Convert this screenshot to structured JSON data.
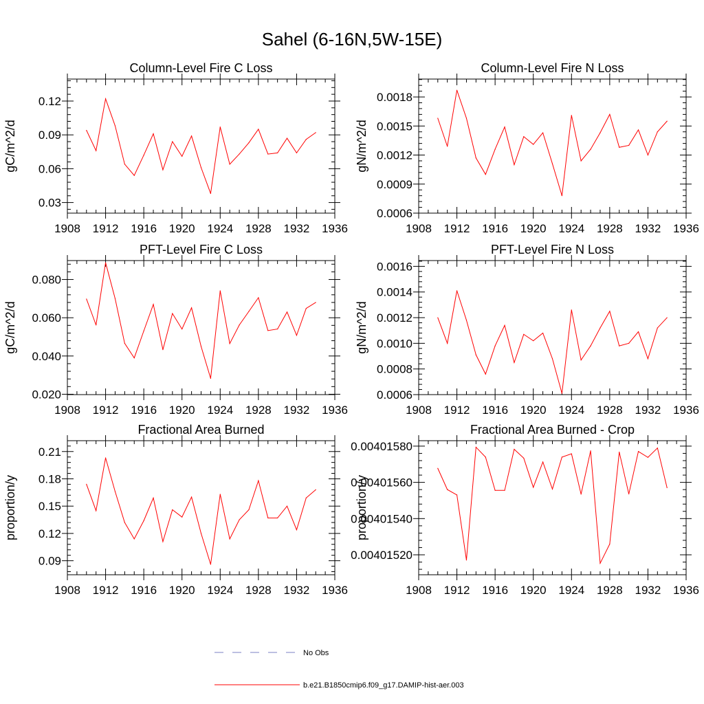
{
  "figure": {
    "title": "Sahel (6-16N,5W-15E)",
    "legend": [
      {
        "label": "No Obs",
        "color": "#7b7fc4",
        "dash": true
      },
      {
        "label": "b.e21.B1850cmip6.f09_g17.DAMIP-hist-aer.003",
        "color": "#ff0000",
        "dash": false
      }
    ]
  },
  "chart_data": [
    {
      "type": "line",
      "title": "Column-Level Fire C Loss",
      "ylabel": "gC/m^2/d",
      "xlim": [
        1908,
        1936
      ],
      "xticks": [
        1908,
        1912,
        1916,
        1920,
        1924,
        1928,
        1932,
        1936
      ],
      "ylim": [
        0.0206,
        0.1395
      ],
      "yticks": [
        0.03,
        0.06,
        0.09,
        0.12
      ],
      "ytick_labels": [
        "0.03",
        "0.06",
        "0.09",
        "0.12"
      ],
      "series": [
        {
          "color": "#ff0000",
          "x": [
            1910,
            1911,
            1912,
            1913,
            1914,
            1915,
            1916,
            1917,
            1918,
            1919,
            1920,
            1921,
            1922,
            1923,
            1924,
            1925,
            1926,
            1927,
            1928,
            1929,
            1930,
            1931,
            1932,
            1933,
            1934
          ],
          "y": [
            0.094,
            0.076,
            0.122,
            0.098,
            0.064,
            0.054,
            0.072,
            0.091,
            0.059,
            0.084,
            0.071,
            0.089,
            0.061,
            0.038,
            0.097,
            0.064,
            0.073,
            0.083,
            0.095,
            0.073,
            0.074,
            0.087,
            0.074,
            0.086,
            0.092
          ]
        }
      ]
    },
    {
      "type": "line",
      "title": "Column-Level Fire N Loss",
      "ylabel": "gN/m^2/d",
      "xlim": [
        1908,
        1936
      ],
      "xticks": [
        1908,
        1912,
        1916,
        1920,
        1924,
        1928,
        1932,
        1936
      ],
      "ylim": [
        0.0006,
        0.001985
      ],
      "yticks": [
        0.0006,
        0.0009,
        0.0012,
        0.0015,
        0.0018
      ],
      "ytick_labels": [
        "0.0006",
        "0.0009",
        "0.0012",
        "0.0015",
        "0.0018"
      ],
      "series": [
        {
          "color": "#ff0000",
          "x": [
            1910,
            1911,
            1912,
            1913,
            1914,
            1915,
            1916,
            1917,
            1918,
            1919,
            1920,
            1921,
            1922,
            1923,
            1924,
            1925,
            1926,
            1927,
            1928,
            1929,
            1930,
            1931,
            1932,
            1933,
            1934
          ],
          "y": [
            0.00158,
            0.00129,
            0.00187,
            0.00158,
            0.00117,
            0.001,
            0.00126,
            0.00149,
            0.0011,
            0.00139,
            0.00131,
            0.00143,
            0.00111,
            0.00078,
            0.00161,
            0.00114,
            0.00126,
            0.00143,
            0.00162,
            0.00128,
            0.0013,
            0.00146,
            0.0012,
            0.00144,
            0.00155
          ]
        }
      ]
    },
    {
      "type": "line",
      "title": "PFT-Level Fire C Loss",
      "ylabel": "gC/m^2/d",
      "xlim": [
        1908,
        1936
      ],
      "xticks": [
        1908,
        1912,
        1916,
        1920,
        1924,
        1928,
        1932,
        1936
      ],
      "ylim": [
        0.0198,
        0.0899
      ],
      "yticks": [
        0.02,
        0.04,
        0.06,
        0.08
      ],
      "ytick_labels": [
        "0.020",
        "0.040",
        "0.060",
        "0.080"
      ],
      "series": [
        {
          "color": "#ff0000",
          "x": [
            1910,
            1911,
            1912,
            1913,
            1914,
            1915,
            1916,
            1917,
            1918,
            1919,
            1920,
            1921,
            1922,
            1923,
            1924,
            1925,
            1926,
            1927,
            1928,
            1929,
            1930,
            1931,
            1932,
            1933,
            1934
          ],
          "y": [
            0.0698,
            0.0562,
            0.0888,
            0.07,
            0.0466,
            0.039,
            0.0531,
            0.067,
            0.0433,
            0.0622,
            0.0541,
            0.0652,
            0.045,
            0.0283,
            0.0741,
            0.0465,
            0.0562,
            0.0633,
            0.0705,
            0.0533,
            0.0541,
            0.063,
            0.0508,
            0.0649,
            0.068
          ]
        }
      ]
    },
    {
      "type": "line",
      "title": "PFT-Level Fire N Loss",
      "ylabel": "gN/m^2/d",
      "xlim": [
        1908,
        1936
      ],
      "xticks": [
        1908,
        1912,
        1916,
        1920,
        1924,
        1928,
        1932,
        1936
      ],
      "ylim": [
        0.0006,
        0.001645
      ],
      "yticks": [
        0.0006,
        0.0008,
        0.001,
        0.0012,
        0.0014,
        0.0016
      ],
      "ytick_labels": [
        "0.0006",
        "0.0008",
        "0.0010",
        "0.0012",
        "0.0014",
        "0.0016"
      ],
      "series": [
        {
          "color": "#ff0000",
          "x": [
            1910,
            1911,
            1912,
            1913,
            1914,
            1915,
            1916,
            1917,
            1918,
            1919,
            1920,
            1921,
            1922,
            1923,
            1924,
            1925,
            1926,
            1927,
            1928,
            1929,
            1930,
            1931,
            1932,
            1933,
            1934
          ],
          "y": [
            0.0012,
            0.001,
            0.00141,
            0.00118,
            0.00091,
            0.00076,
            0.00098,
            0.00114,
            0.00085,
            0.00107,
            0.00102,
            0.00108,
            0.00088,
            0.00061,
            0.00126,
            0.00087,
            0.00098,
            0.00112,
            0.00125,
            0.00098,
            0.001,
            0.00109,
            0.00088,
            0.00112,
            0.0012
          ]
        }
      ]
    },
    {
      "type": "line",
      "title": "Fractional Area Burned",
      "ylabel": "proportion/y",
      "xlim": [
        1908,
        1936
      ],
      "xticks": [
        1908,
        1912,
        1916,
        1920,
        1924,
        1928,
        1932,
        1936
      ],
      "ylim": [
        0.0746,
        0.2219
      ],
      "yticks": [
        0.09,
        0.12,
        0.15,
        0.18,
        0.21
      ],
      "ytick_labels": [
        "0.09",
        "0.12",
        "0.15",
        "0.18",
        "0.21"
      ],
      "series": [
        {
          "color": "#ff0000",
          "x": [
            1910,
            1911,
            1912,
            1913,
            1914,
            1915,
            1916,
            1917,
            1918,
            1919,
            1920,
            1921,
            1922,
            1923,
            1924,
            1925,
            1926,
            1927,
            1928,
            1929,
            1930,
            1931,
            1932,
            1933,
            1934
          ],
          "y": [
            0.174,
            0.145,
            0.203,
            0.166,
            0.132,
            0.114,
            0.134,
            0.159,
            0.111,
            0.146,
            0.138,
            0.16,
            0.12,
            0.086,
            0.163,
            0.114,
            0.135,
            0.146,
            0.178,
            0.137,
            0.137,
            0.15,
            0.124,
            0.159,
            0.168
          ]
        }
      ]
    },
    {
      "type": "line",
      "title": "Fractional Area Burned - Crop",
      "ylabel": "proportion/y",
      "xlim": [
        1908,
        1936
      ],
      "xticks": [
        1908,
        1912,
        1916,
        1920,
        1924,
        1928,
        1932,
        1936
      ],
      "ylim": [
        0.00401509,
        0.00401583
      ],
      "yticks": [
        0.0040152,
        0.0040154,
        0.0040156,
        0.0040158
      ],
      "ytick_labels": [
        "0.00401520",
        "0.00401540",
        "0.00401560",
        "0.00401580"
      ],
      "series": [
        {
          "color": "#ff0000",
          "x": [
            1910,
            1911,
            1912,
            1913,
            1914,
            1915,
            1916,
            1917,
            1918,
            1919,
            1920,
            1921,
            1922,
            1923,
            1924,
            1925,
            1926,
            1927,
            1928,
            1929,
            1930,
            1931,
            1932,
            1933,
            1934
          ],
          "y": [
            0.0040156773,
            0.0040155602,
            0.0040155306,
            0.0040151711,
            0.0040157941,
            0.0040157393,
            0.0040155556,
            0.0040155556,
            0.0040157826,
            0.0040157335,
            0.0040155726,
            0.0040157125,
            0.004015563,
            0.0040157393,
            0.0040157576,
            0.0040155347,
            0.0040157739,
            0.0040151532,
            0.0040152593,
            0.0040157671,
            0.0040155357,
            0.0040157706,
            0.0040157379,
            0.0040157895,
            0.0040155705
          ]
        }
      ]
    }
  ]
}
